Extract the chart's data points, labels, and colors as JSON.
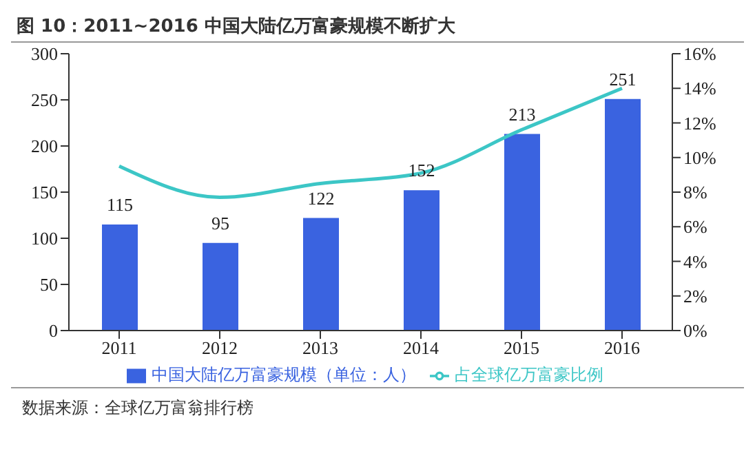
{
  "chart_data": {
    "type": "bar",
    "title": "图 10：2011~2016 中国大陆亿万富豪规模不断扩大",
    "categories": [
      "2011",
      "2012",
      "2013",
      "2014",
      "2015",
      "2016"
    ],
    "series": [
      {
        "name": "中国大陆亿万富豪规模（单位：人）",
        "color": "#3a63e0",
        "values": [
          115,
          95,
          122,
          152,
          213,
          251
        ],
        "value_labels": [
          "115",
          "95",
          "122",
          "152",
          "213",
          "251"
        ]
      },
      {
        "name": "占全球亿万富豪比例",
        "type": "line",
        "axis": "y2",
        "color": "#3cc6c6",
        "values": [
          9.5,
          7.7,
          8.5,
          9.1,
          11.6,
          14.0
        ]
      }
    ],
    "ylim": [
      0,
      300
    ],
    "yticks": [
      0,
      50,
      100,
      150,
      200,
      250,
      300
    ],
    "y2lim": [
      0,
      16
    ],
    "y2ticks": [
      {
        "value": 0,
        "label": "0%"
      },
      {
        "value": 2,
        "label": "2%"
      },
      {
        "value": 4,
        "label": "4%"
      },
      {
        "value": 6,
        "label": "6%"
      },
      {
        "value": 8,
        "label": "8%"
      },
      {
        "value": 10,
        "label": "10%"
      },
      {
        "value": 12,
        "label": "12%"
      },
      {
        "value": 14,
        "label": "14%"
      },
      {
        "value": 16,
        "label": "16%"
      }
    ],
    "legend": "bottom",
    "marker": "none",
    "annotations": [
      "数据来源：全球亿万富翁排行榜"
    ]
  }
}
